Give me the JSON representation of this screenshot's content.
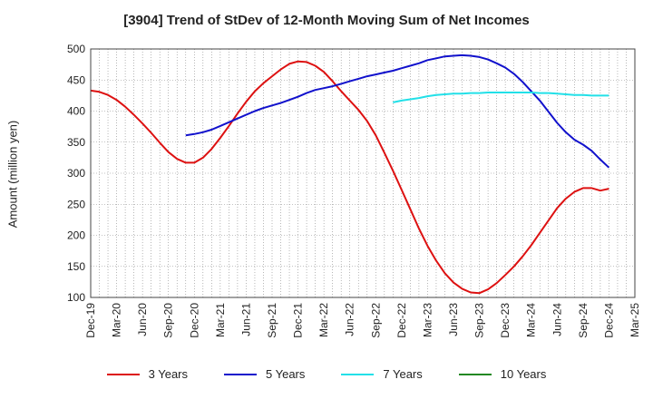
{
  "chart_data": {
    "type": "line",
    "title": "[3904]  Trend of StDev of 12-Month Moving Sum of Net Incomes",
    "ylabel": "Amount (million yen)",
    "xlabel": "",
    "ylim": [
      100,
      500
    ],
    "yticks": [
      100,
      150,
      200,
      250,
      300,
      350,
      400,
      450,
      500
    ],
    "xticks": [
      "Dec-19",
      "Mar-20",
      "Jun-20",
      "Sep-20",
      "Dec-20",
      "Mar-21",
      "Jun-21",
      "Sep-21",
      "Dec-21",
      "Mar-22",
      "Jun-22",
      "Sep-22",
      "Dec-22",
      "Mar-23",
      "Jun-23",
      "Sep-23",
      "Dec-23",
      "Mar-24",
      "Jun-24",
      "Sep-24",
      "Dec-24",
      "Mar-25"
    ],
    "grid": true,
    "legend_position": "bottom",
    "series": [
      {
        "name": "3 Years",
        "color": "#dd1111",
        "x": [
          "Dec-19",
          "Jan-20",
          "Feb-20",
          "Mar-20",
          "Apr-20",
          "May-20",
          "Jun-20",
          "Jul-20",
          "Aug-20",
          "Sep-20",
          "Oct-20",
          "Nov-20",
          "Dec-20",
          "Jan-21",
          "Feb-21",
          "Mar-21",
          "Apr-21",
          "May-21",
          "Jun-21",
          "Jul-21",
          "Aug-21",
          "Sep-21",
          "Oct-21",
          "Nov-21",
          "Dec-21",
          "Jan-22",
          "Feb-22",
          "Mar-22",
          "Apr-22",
          "May-22",
          "Jun-22",
          "Jul-22",
          "Aug-22",
          "Sep-22",
          "Oct-22",
          "Nov-22",
          "Dec-22",
          "Jan-23",
          "Feb-23",
          "Mar-23",
          "Apr-23",
          "May-23",
          "Jun-23",
          "Jul-23",
          "Aug-23",
          "Sep-23",
          "Oct-23",
          "Nov-23",
          "Dec-23",
          "Jan-24",
          "Feb-24",
          "Mar-24",
          "Apr-24",
          "May-24",
          "Jun-24",
          "Jul-24",
          "Aug-24",
          "Sep-24",
          "Oct-24",
          "Nov-24",
          "Dec-24"
        ],
        "values": [
          433,
          431,
          426,
          418,
          407,
          394,
          380,
          365,
          349,
          334,
          323,
          317,
          317,
          325,
          339,
          357,
          376,
          396,
          415,
          432,
          445,
          456,
          467,
          476,
          480,
          479,
          473,
          463,
          448,
          432,
          417,
          402,
          384,
          361,
          333,
          304,
          273,
          242,
          211,
          183,
          159,
          139,
          124,
          114,
          108,
          107,
          113,
          123,
          136,
          150,
          166,
          184,
          204,
          224,
          244,
          259,
          270,
          276,
          276,
          272,
          275
        ]
      },
      {
        "name": "5 Years",
        "color": "#1111cc",
        "x": [
          "Nov-20",
          "Dec-20",
          "Jan-21",
          "Feb-21",
          "Mar-21",
          "Apr-21",
          "May-21",
          "Jun-21",
          "Jul-21",
          "Aug-21",
          "Sep-21",
          "Oct-21",
          "Nov-21",
          "Dec-21",
          "Jan-22",
          "Feb-22",
          "Mar-22",
          "Apr-22",
          "May-22",
          "Jun-22",
          "Jul-22",
          "Aug-22",
          "Sep-22",
          "Oct-22",
          "Nov-22",
          "Dec-22",
          "Jan-23",
          "Feb-23",
          "Mar-23",
          "Apr-23",
          "May-23",
          "Jun-23",
          "Jul-23",
          "Aug-23",
          "Sep-23",
          "Oct-23",
          "Nov-23",
          "Dec-23",
          "Jan-24",
          "Feb-24",
          "Mar-24",
          "Apr-24",
          "May-24",
          "Jun-24",
          "Jul-24",
          "Aug-24",
          "Sep-24",
          "Oct-24",
          "Nov-24",
          "Dec-24"
        ],
        "values": [
          361,
          363,
          366,
          370,
          376,
          382,
          388,
          394,
          400,
          405,
          409,
          413,
          418,
          423,
          429,
          434,
          437,
          440,
          444,
          448,
          452,
          456,
          459,
          462,
          465,
          469,
          473,
          477,
          482,
          485,
          488,
          489,
          490,
          489,
          487,
          483,
          477,
          470,
          460,
          447,
          432,
          417,
          399,
          381,
          366,
          354,
          346,
          336,
          322,
          309
        ]
      },
      {
        "name": "7 Years",
        "color": "#22e0e8",
        "x": [
          "Nov-22",
          "Dec-22",
          "Jan-23",
          "Feb-23",
          "Mar-23",
          "Apr-23",
          "May-23",
          "Jun-23",
          "Jul-23",
          "Aug-23",
          "Sep-23",
          "Oct-23",
          "Nov-23",
          "Dec-23",
          "Jan-24",
          "Feb-24",
          "Mar-24",
          "Apr-24",
          "May-24",
          "Jun-24",
          "Jul-24",
          "Aug-24",
          "Sep-24",
          "Oct-24",
          "Nov-24",
          "Dec-24"
        ],
        "values": [
          414,
          417,
          419,
          421,
          424,
          426,
          427,
          428,
          428,
          429,
          429,
          430,
          430,
          430,
          430,
          430,
          430,
          429,
          429,
          428,
          427,
          426,
          426,
          425,
          425,
          425
        ]
      },
      {
        "name": "10 Years",
        "color": "#228822",
        "x": [],
        "values": []
      }
    ]
  }
}
